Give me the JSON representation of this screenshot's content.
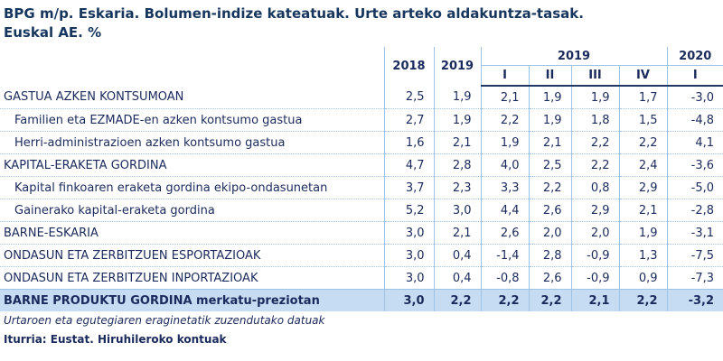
{
  "header": {
    "title": "BPG m/p. Eskaria. Bolumen-indize kateatuak. Urte arteko aldakuntza-tasak.",
    "subtitle": "Euskal AE. %"
  },
  "table": {
    "years": [
      "2018",
      "2019"
    ],
    "groups": [
      {
        "label": "2019",
        "quarters": [
          "I",
          "II",
          "III",
          "IV"
        ]
      },
      {
        "label": "2020",
        "quarters": [
          "I"
        ]
      }
    ],
    "rows": [
      {
        "label": "GASTUA AZKEN KONTSUMOAN",
        "indent": false,
        "values": [
          "2,5",
          "1,9",
          "2,1",
          "1,9",
          "1,9",
          "1,7",
          "-3,0"
        ]
      },
      {
        "label": "Familien eta EZMADE-en azken kontsumo gastua",
        "indent": true,
        "values": [
          "2,7",
          "1,9",
          "2,2",
          "1,9",
          "1,8",
          "1,5",
          "-4,8"
        ]
      },
      {
        "label": "Herri-administrazioen azken kontsumo gastua",
        "indent": true,
        "values": [
          "1,6",
          "2,1",
          "1,9",
          "2,1",
          "2,2",
          "2,2",
          "4,1"
        ]
      },
      {
        "label": "KAPITAL-ERAKETA GORDINA",
        "indent": false,
        "values": [
          "4,7",
          "2,8",
          "4,0",
          "2,5",
          "2,2",
          "2,4",
          "-3,6"
        ]
      },
      {
        "label": "Kapital finkoaren eraketa gordina ekipo-ondasunetan",
        "indent": true,
        "values": [
          "3,7",
          "2,3",
          "3,3",
          "2,2",
          "0,8",
          "2,9",
          "-5,0"
        ]
      },
      {
        "label": "Gainerako kapital-eraketa gordina",
        "indent": true,
        "values": [
          "5,2",
          "3,0",
          "4,4",
          "2,6",
          "2,9",
          "2,1",
          "-2,8"
        ]
      },
      {
        "label": "BARNE-ESKARIA",
        "indent": false,
        "values": [
          "3,0",
          "2,1",
          "2,6",
          "2,0",
          "2,0",
          "1,9",
          "-3,1"
        ]
      },
      {
        "label": "ONDASUN ETA ZERBITZUEN ESPORTAZIOAK",
        "indent": false,
        "values": [
          "3,0",
          "0,4",
          "-1,4",
          "2,8",
          "-0,9",
          "1,3",
          "-7,5"
        ]
      },
      {
        "label": "ONDASUN ETA ZERBITZUEN INPORTAZIOAK",
        "indent": false,
        "values": [
          "3,0",
          "0,4",
          "-0,8",
          "2,6",
          "-0,9",
          "0,9",
          "-7,3"
        ]
      },
      {
        "label": "BARNE PRODUKTU GORDINA merkatu-preziotan",
        "indent": false,
        "highlight": true,
        "values": [
          "3,0",
          "2,2",
          "2,2",
          "2,2",
          "2,1",
          "2,2",
          "-3,2"
        ]
      }
    ]
  },
  "footer": {
    "note": "Urtaroen eta egutegiaren eraginetatik zuzendutako datuak",
    "source": "Iturria: Eustat. Hiruhileroko kontuak"
  }
}
